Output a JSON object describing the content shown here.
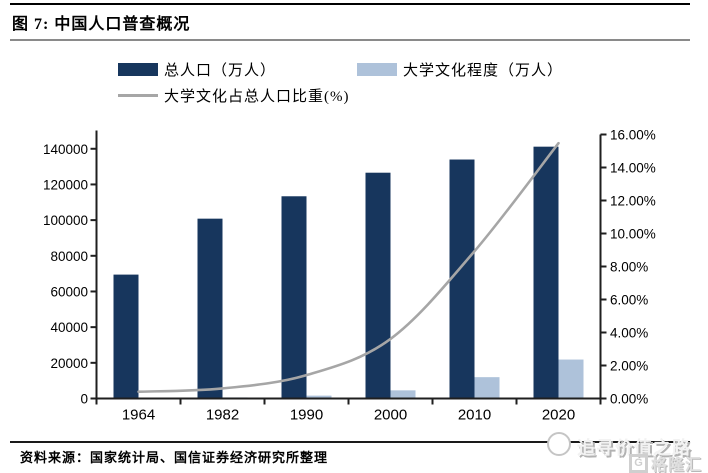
{
  "figure": {
    "title": "图 7: 中国人口普查概况",
    "source": "资料来源：国家统计局、国信证券经济研究所整理"
  },
  "watermark": {
    "text": "追寻价值之路",
    "logo_letter": "G",
    "logo_text": "格隆汇"
  },
  "colors": {
    "total_population_bar": "#17365D",
    "college_bar": "#AEC2DA",
    "ratio_line": "#A6A6A6",
    "axis": "#1f1f1f"
  },
  "chart_data": {
    "type": "bar",
    "subtype": "bar+line combo, dual axis",
    "categories": [
      "1964",
      "1982",
      "1990",
      "2000",
      "2010",
      "2020"
    ],
    "series": [
      {
        "name": "总人口（万人）",
        "type": "bar",
        "axis": "left",
        "color": "#17365D",
        "values": [
          69458,
          100818,
          113368,
          126583,
          133972,
          141178
        ]
      },
      {
        "name": "大学文化程度（万人）",
        "type": "bar",
        "axis": "left",
        "color": "#AEC2DA",
        "values": [
          288,
          615,
          1612,
          4571,
          11964,
          21836
        ]
      },
      {
        "name": "大学文化占总人口比重(%)",
        "type": "line",
        "axis": "right",
        "color": "#A6A6A6",
        "values": [
          0.41,
          0.61,
          1.42,
          3.61,
          8.93,
          15.47
        ]
      }
    ],
    "left_axis": {
      "ticks": [
        "0",
        "20000",
        "40000",
        "60000",
        "80000",
        "100000",
        "120000",
        "140000"
      ],
      "min": 0,
      "max": 148000,
      "tick_step": 20000
    },
    "right_axis": {
      "ticks": [
        "0.00%",
        "2.00%",
        "4.00%",
        "6.00%",
        "8.00%",
        "10.00%",
        "12.00%",
        "14.00%",
        "16.00%"
      ],
      "min": 0,
      "max": 16,
      "tick_step": 2
    },
    "grid": false,
    "legend_position": "top"
  }
}
